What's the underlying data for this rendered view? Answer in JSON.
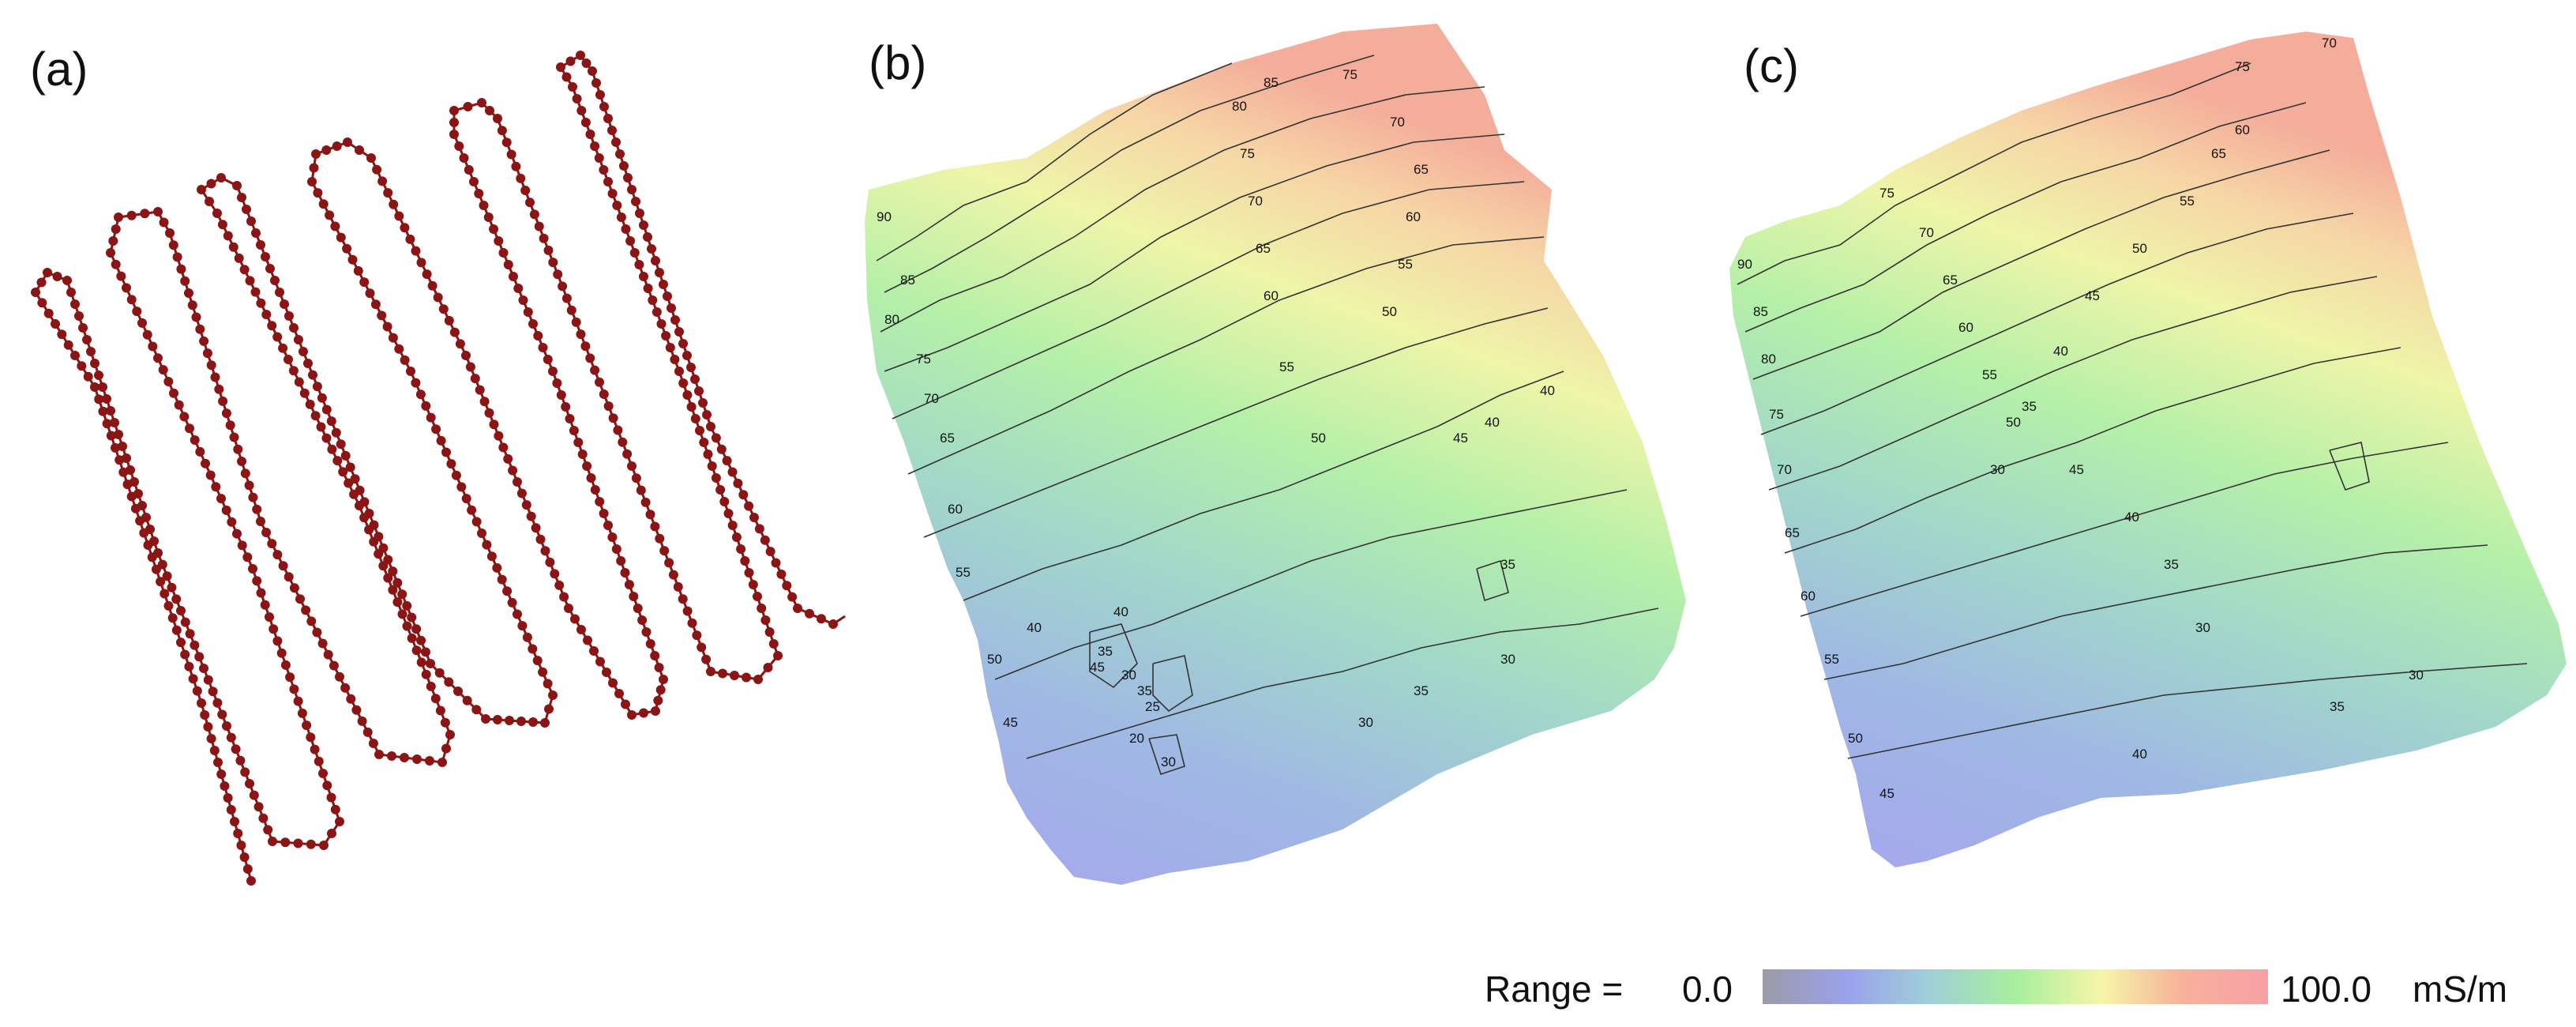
{
  "panels": [
    {
      "label": "(a)",
      "content": "survey track"
    },
    {
      "label": "(b)",
      "contour_labels": [
        "90",
        "85",
        "80",
        "75",
        "70",
        "65",
        "60",
        "55",
        "50",
        "45",
        "40",
        "35",
        "30",
        "25",
        "20",
        "40",
        "45",
        "35",
        "30",
        "30",
        "35",
        "40",
        "45",
        "50",
        "55",
        "60",
        "65",
        "70",
        "75",
        "80",
        "85",
        "50",
        "55",
        "60",
        "65",
        "70",
        "75",
        "40",
        "35",
        "30"
      ]
    },
    {
      "label": "(c)",
      "contour_labels": [
        "90",
        "85",
        "80",
        "75",
        "70",
        "65",
        "60",
        "55",
        "50",
        "45",
        "40",
        "35",
        "30",
        "70",
        "75",
        "60",
        "65",
        "55",
        "50",
        "45",
        "40",
        "35",
        "30",
        "75",
        "70",
        "65",
        "60",
        "55",
        "50",
        "45",
        "40",
        "35",
        "30"
      ]
    }
  ],
  "colorbar": {
    "prefix": "Range =",
    "min_label": "0.0",
    "max_label": "100.0",
    "unit": "mS/m",
    "range": [
      0.0,
      100.0
    ],
    "colors": [
      "#9b9ba8",
      "#9aa2ec",
      "#9fcfd8",
      "#a6ef9e",
      "#f6f6a8",
      "#f7b19a",
      "#f7a0a6"
    ]
  },
  "colors": {
    "track": "#8b1414",
    "contour": "#333333"
  }
}
